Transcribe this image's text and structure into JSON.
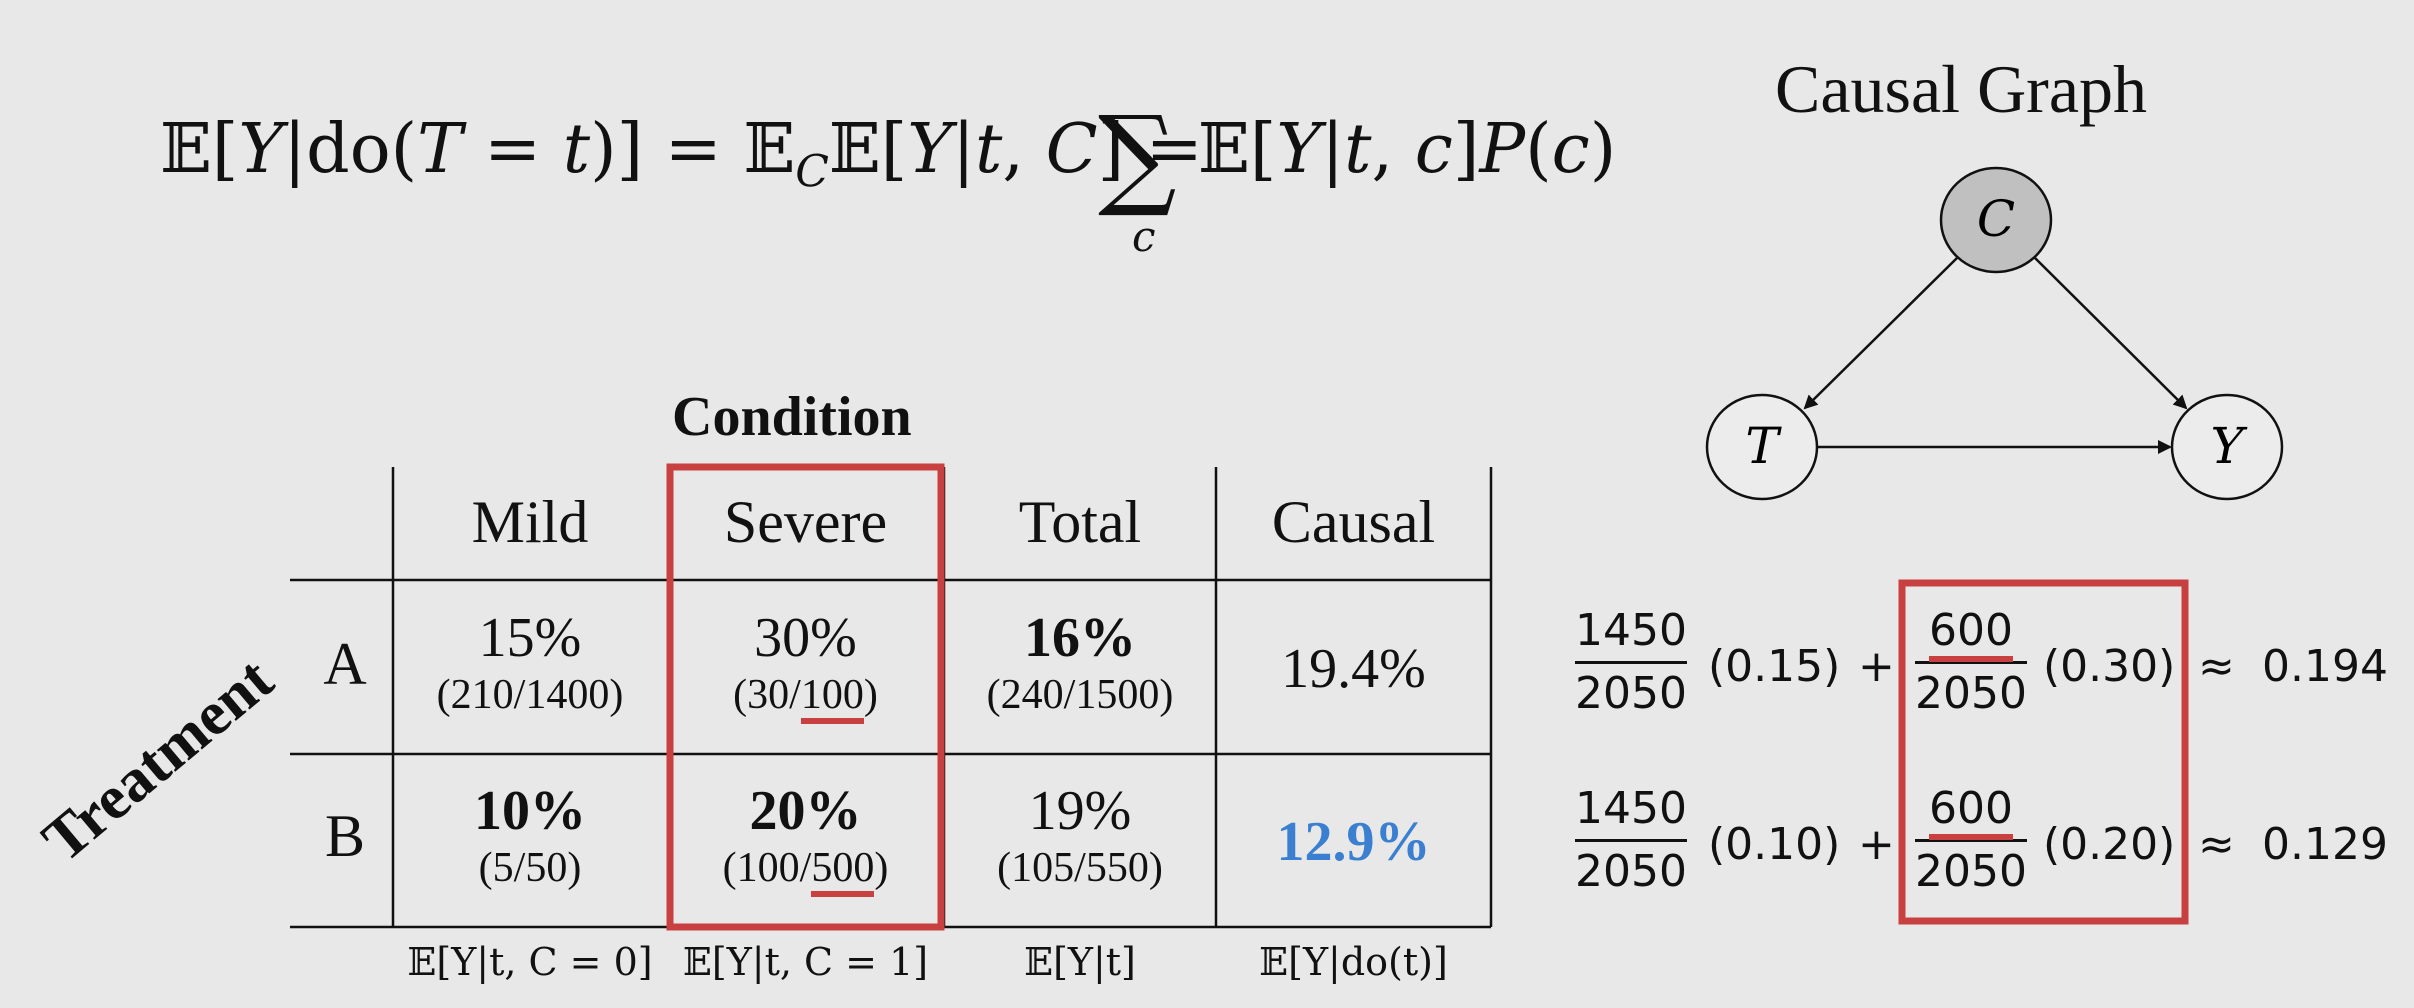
{
  "formula": {
    "lhs_E": "𝔼[",
    "lhs_Y": "Y",
    "lhs_bar_do": "|do(",
    "lhs_T": "T",
    "lhs_eq_t": " = ",
    "lhs_t": "t",
    "lhs_close": ")]",
    "eq1": " = ",
    "mid_E": "𝔼",
    "mid_C_sub": "C",
    "mid_E2": "𝔼[",
    "mid_Y": "Y",
    "mid_bar": "|",
    "mid_t": "t",
    "mid_comma": ", ",
    "mid_C": "C",
    "mid_close": "]",
    "eq2": " = ",
    "sum": "∑",
    "sum_sub": "c",
    "rhs_E": "𝔼[",
    "rhs_Y": "Y",
    "rhs_bar": "|",
    "rhs_t": "t",
    "rhs_comma": ", ",
    "rhs_c": "c",
    "rhs_close": "]",
    "rhs_P": "P",
    "rhs_paren_open": "(",
    "rhs_pc": "c",
    "rhs_paren_close": ")"
  },
  "graph": {
    "title": "Causal Graph",
    "nodes": {
      "c": "C",
      "t": "T",
      "y": "Y"
    }
  },
  "table": {
    "condition_title": "Condition",
    "treatment_title": "Treatment",
    "headers": [
      "Mild",
      "Severe",
      "Total",
      "Causal"
    ],
    "rows": [
      {
        "label": "A",
        "mild": {
          "pct": "15%",
          "frac": "(210/1400)"
        },
        "severe": {
          "pct": "30%",
          "frac_pre": "(30/",
          "frac_ul": "100",
          "frac_post": ")"
        },
        "total": {
          "pct": "16%",
          "frac": "(240/1500)"
        },
        "causal": "19.4%"
      },
      {
        "label": "B",
        "mild": {
          "pct": "10%",
          "frac": "(5/50)"
        },
        "severe": {
          "pct": "20%",
          "frac_pre": "(100/",
          "frac_ul": "500",
          "frac_post": ")"
        },
        "total": {
          "pct": "19%",
          "frac": "(105/550)"
        },
        "causal": "12.9%"
      }
    ],
    "footers": [
      "𝔼[Y|t, C = 0]",
      "𝔼[Y|t, C = 1]",
      "𝔼[Y|t]",
      "𝔼[Y|do(t)]"
    ]
  },
  "calc": [
    {
      "num1": "1450",
      "den1": "2050",
      "v1": "(0.15)",
      "plus": "+",
      "num2": "600",
      "den2": "2050",
      "v2": "(0.30)",
      "approx": "≈",
      "result": "0.194"
    },
    {
      "num1": "1450",
      "den1": "2050",
      "v1": "(0.10)",
      "plus": "+",
      "num2": "600",
      "den2": "2050",
      "v2": "(0.20)",
      "approx": "≈",
      "result": "0.129"
    }
  ],
  "colors": {
    "background": "#e8e8e8",
    "highlight": "#c94040",
    "causal_blue": "#3a7fd0",
    "node_fill_c": "#c0c0c0"
  }
}
